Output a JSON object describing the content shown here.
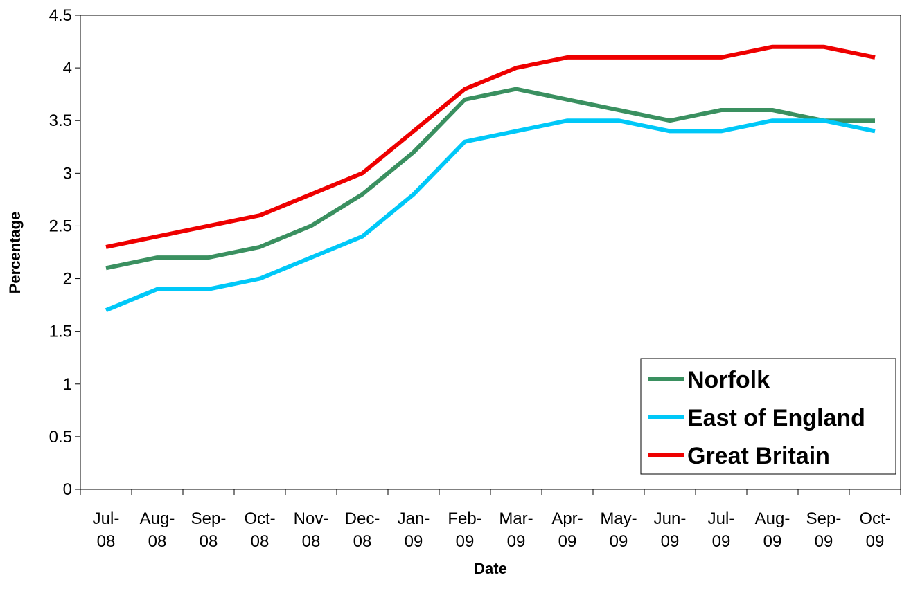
{
  "chart_data": {
    "type": "line",
    "title": "",
    "xlabel": "Date",
    "ylabel": "Percentage",
    "categories": [
      [
        "Jul-",
        "08"
      ],
      [
        "Aug-",
        "08"
      ],
      [
        "Sep-",
        "08"
      ],
      [
        "Oct-",
        "08"
      ],
      [
        "Nov-",
        "08"
      ],
      [
        "Dec-",
        "08"
      ],
      [
        "Jan-",
        "09"
      ],
      [
        "Feb-",
        "09"
      ],
      [
        "Mar-",
        "09"
      ],
      [
        "Apr-",
        "09"
      ],
      [
        "May-",
        "09"
      ],
      [
        "Jun-",
        "09"
      ],
      [
        "Jul-",
        "09"
      ],
      [
        "Aug-",
        "09"
      ],
      [
        "Sep-",
        "09"
      ],
      [
        "Oct-",
        "09"
      ]
    ],
    "ylim": [
      0,
      4.5
    ],
    "yticks": [
      "0",
      "0.5",
      "1",
      "1.5",
      "2",
      "2.5",
      "3",
      "3.5",
      "4",
      "4.5"
    ],
    "grid": false,
    "legend_position": "bottom-right",
    "series": [
      {
        "name": "Norfolk",
        "color": "#3a9060",
        "values": [
          2.1,
          2.2,
          2.2,
          2.3,
          2.5,
          2.8,
          3.2,
          3.7,
          3.8,
          3.7,
          3.6,
          3.5,
          3.6,
          3.6,
          3.5,
          3.5
        ]
      },
      {
        "name": "East of England",
        "color": "#00c8f8",
        "values": [
          1.7,
          1.9,
          1.9,
          2.0,
          2.2,
          2.4,
          2.8,
          3.3,
          3.4,
          3.5,
          3.5,
          3.4,
          3.4,
          3.5,
          3.5,
          3.4
        ]
      },
      {
        "name": "Great Britain",
        "color": "#ee0000",
        "values": [
          2.3,
          2.4,
          2.5,
          2.6,
          2.8,
          3.0,
          3.4,
          3.8,
          4.0,
          4.1,
          4.1,
          4.1,
          4.1,
          4.2,
          4.2,
          4.1
        ]
      }
    ]
  }
}
